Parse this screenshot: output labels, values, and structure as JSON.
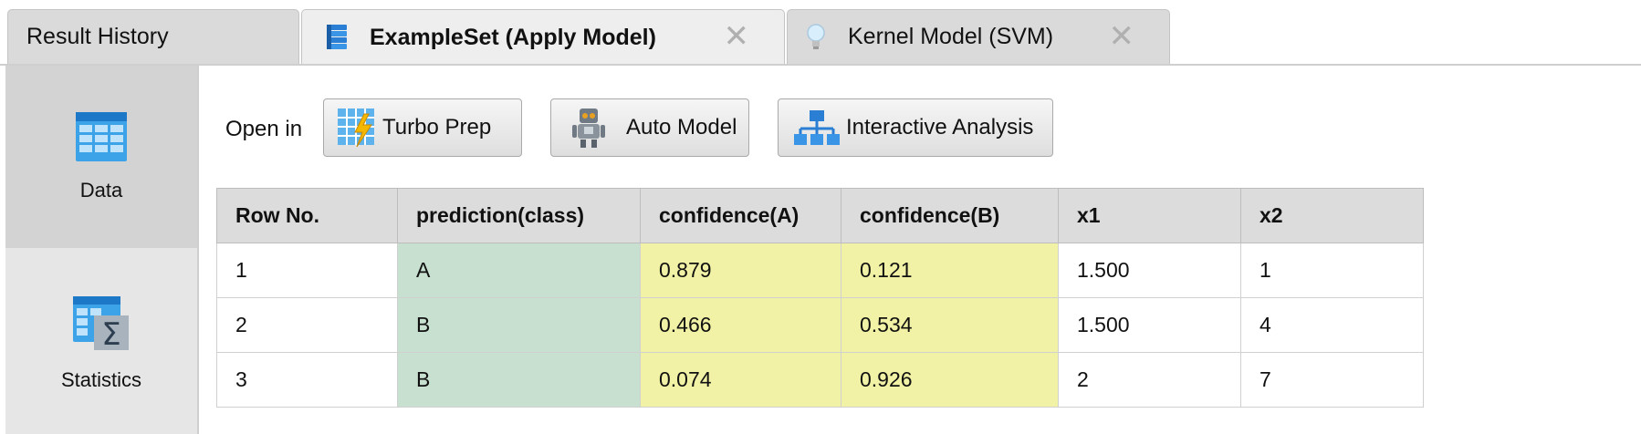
{
  "tabs": [
    {
      "label": "Result History"
    },
    {
      "label": "ExampleSet (Apply Model)",
      "close": "✕"
    },
    {
      "label": "Kernel Model (SVM)",
      "close": "✕"
    }
  ],
  "side": {
    "items": [
      {
        "label": "Data",
        "icon": "table-icon"
      },
      {
        "label": "Statistics",
        "icon": "statistics-icon"
      }
    ]
  },
  "toolbar": {
    "open_in_label": "Open in",
    "buttons": [
      {
        "label": "Turbo Prep",
        "icon": "turbo-prep-icon"
      },
      {
        "label": "Auto Model",
        "icon": "robot-icon"
      },
      {
        "label": "Interactive Analysis",
        "icon": "hierarchy-icon"
      }
    ]
  },
  "table": {
    "headers": [
      "Row No.",
      "prediction(class)",
      "confidence(A)",
      "confidence(B)",
      "x1",
      "x2"
    ],
    "rows": [
      [
        "1",
        "A",
        "0.879",
        "0.121",
        "1.500",
        "1"
      ],
      [
        "2",
        "B",
        "0.466",
        "0.534",
        "1.500",
        "4"
      ],
      [
        "3",
        "B",
        "0.074",
        "0.926",
        "2",
        "7"
      ]
    ]
  },
  "colors": {
    "prediction_bg": "#c8e0d0",
    "confidence_bg": "#f2f2a6",
    "header_bg": "#dcdcdc"
  }
}
